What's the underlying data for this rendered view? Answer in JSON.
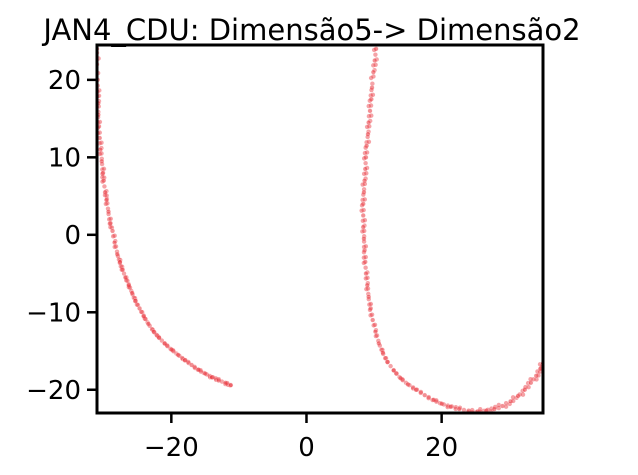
{
  "chart_data": {
    "type": "scatter",
    "title": "JAN4_CDU: Dimensão5-> Dimensão2",
    "xlabel": "",
    "ylabel": "",
    "xlim": [
      -31,
      35
    ],
    "ylim": [
      -23,
      24.5
    ],
    "x_ticks": [
      -20,
      0,
      20
    ],
    "x_tick_labels": [
      "−20",
      "0",
      "20"
    ],
    "y_ticks": [
      -20,
      -10,
      0,
      10,
      20
    ],
    "y_tick_labels": [
      "−20",
      "−10",
      "0",
      "10",
      "20"
    ],
    "grid": false,
    "legend": false,
    "point_color": "#e8343c",
    "series": [
      {
        "values": [
          [
            -31.0,
            24.0
          ],
          [
            -31.0,
            22.0
          ],
          [
            -30.9,
            20.0
          ],
          [
            -30.9,
            18.5
          ],
          [
            -30.8,
            17.0
          ],
          [
            -30.8,
            15.5
          ],
          [
            -30.7,
            14.0
          ],
          [
            -30.6,
            12.5
          ],
          [
            -30.5,
            11.0
          ],
          [
            -30.3,
            9.5
          ],
          [
            -30.1,
            8.0
          ],
          [
            -30.0,
            7.0
          ],
          [
            -29.8,
            5.5
          ],
          [
            -29.6,
            4.5
          ],
          [
            -29.3,
            3.0
          ],
          [
            -29.0,
            1.5
          ],
          [
            -28.7,
            0.5
          ],
          [
            -28.4,
            -1.0
          ],
          [
            -28.0,
            -2.5
          ],
          [
            -27.6,
            -3.5
          ],
          [
            -27.2,
            -4.5
          ],
          [
            -26.8,
            -5.5
          ],
          [
            -26.3,
            -6.5
          ],
          [
            -25.8,
            -7.5
          ],
          [
            -25.3,
            -8.5
          ],
          [
            -24.7,
            -9.5
          ],
          [
            -24.1,
            -10.5
          ],
          [
            -23.4,
            -11.5
          ],
          [
            -22.6,
            -12.5
          ],
          [
            -21.8,
            -13.3
          ],
          [
            -21.0,
            -14.0
          ],
          [
            -20.0,
            -14.8
          ],
          [
            -19.0,
            -15.5
          ],
          [
            -18.0,
            -16.2
          ],
          [
            -17.0,
            -16.8
          ],
          [
            -16.0,
            -17.4
          ],
          [
            -15.0,
            -17.9
          ],
          [
            -14.0,
            -18.4
          ],
          [
            -13.0,
            -18.8
          ],
          [
            -12.0,
            -19.1
          ],
          [
            -11.2,
            -19.4
          ]
        ]
      },
      {
        "values": [
          [
            10.3,
            24.0
          ],
          [
            10.1,
            22.5
          ],
          [
            9.9,
            21.0
          ],
          [
            9.7,
            19.0
          ],
          [
            9.6,
            17.5
          ],
          [
            9.4,
            16.0
          ],
          [
            9.2,
            14.5
          ],
          [
            9.1,
            13.0
          ],
          [
            8.9,
            11.5
          ],
          [
            8.8,
            10.0
          ],
          [
            8.7,
            8.5
          ],
          [
            8.6,
            7.0
          ],
          [
            8.5,
            5.5
          ],
          [
            8.4,
            4.0
          ],
          [
            8.4,
            2.5
          ],
          [
            8.4,
            1.0
          ],
          [
            8.5,
            -0.5
          ],
          [
            8.6,
            -2.0
          ],
          [
            8.7,
            -3.5
          ],
          [
            8.8,
            -5.0
          ],
          [
            9.0,
            -6.5
          ],
          [
            9.2,
            -8.0
          ],
          [
            9.5,
            -9.5
          ],
          [
            9.8,
            -11.0
          ],
          [
            10.2,
            -12.5
          ],
          [
            10.7,
            -14.0
          ],
          [
            11.3,
            -15.2
          ],
          [
            12.0,
            -16.4
          ],
          [
            12.9,
            -17.5
          ],
          [
            13.9,
            -18.5
          ],
          [
            15.0,
            -19.3
          ],
          [
            16.2,
            -20.0
          ],
          [
            17.5,
            -20.7
          ],
          [
            18.8,
            -21.3
          ],
          [
            20.0,
            -21.8
          ],
          [
            21.3,
            -22.2
          ],
          [
            22.6,
            -22.5
          ],
          [
            24.0,
            -22.7
          ],
          [
            25.3,
            -22.8
          ],
          [
            26.6,
            -22.7
          ],
          [
            27.8,
            -22.5
          ],
          [
            29.0,
            -22.1
          ],
          [
            30.2,
            -21.5
          ],
          [
            31.3,
            -20.8
          ],
          [
            32.3,
            -20.0
          ],
          [
            33.2,
            -19.1
          ],
          [
            34.0,
            -18.2
          ],
          [
            34.6,
            -17.3
          ],
          [
            35.0,
            -16.6
          ]
        ]
      }
    ]
  }
}
